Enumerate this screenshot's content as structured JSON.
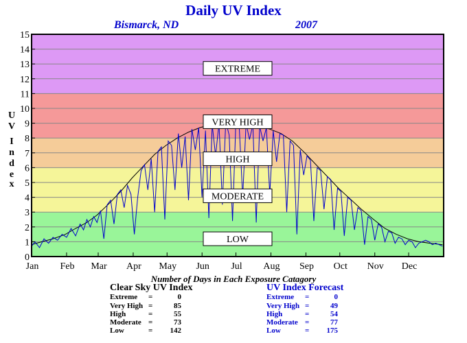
{
  "chart_data": {
    "type": "line",
    "title": "Daily UV Index",
    "subtitle_location": "Bismarck, ND",
    "subtitle_year": "2007",
    "ylabel": "UV Index",
    "ylim": [
      0,
      15
    ],
    "yticks": [
      "0",
      "1",
      "2",
      "3",
      "4",
      "5",
      "6",
      "7",
      "8",
      "9",
      "10",
      "11",
      "12",
      "13",
      "14",
      "15"
    ],
    "xlabels": [
      "Jan",
      "Feb",
      "Mar",
      "Apr",
      "May",
      "Jun",
      "Jul",
      "Aug",
      "Sep",
      "Oct",
      "Nov",
      "Dec"
    ],
    "grid": true,
    "bands": [
      {
        "name": "LOW",
        "from": 0,
        "to": 3,
        "color": "#99f599"
      },
      {
        "name": "MODERATE",
        "from": 3,
        "to": 6,
        "color": "#f5f599"
      },
      {
        "name": "HIGH",
        "from": 6,
        "to": 8,
        "color": "#f5cc99"
      },
      {
        "name": "VERY HIGH",
        "from": 8,
        "to": 11,
        "color": "#f59999"
      },
      {
        "name": "EXTREME",
        "from": 11,
        "to": 15,
        "color": "#dd99f5"
      }
    ],
    "series": [
      {
        "name": "Clear Sky UV Index",
        "color": "#000000",
        "points": [
          [
            1,
            0.8
          ],
          [
            10,
            1.0
          ],
          [
            20,
            1.2
          ],
          [
            31,
            1.5
          ],
          [
            40,
            1.9
          ],
          [
            50,
            2.3
          ],
          [
            59,
            2.8
          ],
          [
            70,
            3.6
          ],
          [
            80,
            4.4
          ],
          [
            90,
            5.3
          ],
          [
            100,
            6.1
          ],
          [
            110,
            6.9
          ],
          [
            120,
            7.5
          ],
          [
            130,
            8.0
          ],
          [
            140,
            8.4
          ],
          [
            150,
            8.7
          ],
          [
            160,
            8.9
          ],
          [
            172,
            9.0
          ],
          [
            182,
            9.0
          ],
          [
            192,
            8.9
          ],
          [
            202,
            8.8
          ],
          [
            212,
            8.6
          ],
          [
            222,
            8.3
          ],
          [
            232,
            7.8
          ],
          [
            243,
            7.0
          ],
          [
            253,
            6.2
          ],
          [
            263,
            5.4
          ],
          [
            273,
            4.6
          ],
          [
            283,
            3.9
          ],
          [
            293,
            3.2
          ],
          [
            304,
            2.5
          ],
          [
            314,
            1.9
          ],
          [
            324,
            1.5
          ],
          [
            334,
            1.2
          ],
          [
            344,
            1.0
          ],
          [
            354,
            0.9
          ],
          [
            365,
            0.8
          ]
        ]
      },
      {
        "name": "UV Index Forecast",
        "color": "#0000cc",
        "points": [
          [
            1,
            0.7
          ],
          [
            4,
            1.0
          ],
          [
            8,
            0.6
          ],
          [
            12,
            1.2
          ],
          [
            16,
            0.9
          ],
          [
            20,
            1.3
          ],
          [
            24,
            1.1
          ],
          [
            28,
            1.5
          ],
          [
            32,
            1.3
          ],
          [
            36,
            1.9
          ],
          [
            40,
            1.4
          ],
          [
            44,
            2.2
          ],
          [
            47,
            1.8
          ],
          [
            50,
            2.5
          ],
          [
            53,
            2.0
          ],
          [
            56,
            2.7
          ],
          [
            59,
            2.3
          ],
          [
            62,
            3.1
          ],
          [
            65,
            1.2
          ],
          [
            68,
            3.5
          ],
          [
            71,
            3.8
          ],
          [
            74,
            2.2
          ],
          [
            77,
            4.2
          ],
          [
            80,
            4.5
          ],
          [
            83,
            3.3
          ],
          [
            86,
            4.8
          ],
          [
            89,
            4.2
          ],
          [
            92,
            1.5
          ],
          [
            95,
            4.0
          ],
          [
            98,
            5.8
          ],
          [
            101,
            6.2
          ],
          [
            104,
            4.5
          ],
          [
            107,
            6.6
          ],
          [
            110,
            3.0
          ],
          [
            113,
            7.1
          ],
          [
            116,
            7.4
          ],
          [
            119,
            2.5
          ],
          [
            122,
            7.8
          ],
          [
            125,
            7.5
          ],
          [
            128,
            4.5
          ],
          [
            131,
            8.3
          ],
          [
            134,
            6.0
          ],
          [
            137,
            8.1
          ],
          [
            140,
            3.8
          ],
          [
            143,
            8.6
          ],
          [
            146,
            7.2
          ],
          [
            149,
            8.7
          ],
          [
            152,
            4.0
          ],
          [
            155,
            8.5
          ],
          [
            158,
            2.6
          ],
          [
            161,
            8.9
          ],
          [
            164,
            6.8
          ],
          [
            167,
            9.0
          ],
          [
            170,
            3.5
          ],
          [
            173,
            9.1
          ],
          [
            176,
            8.2
          ],
          [
            179,
            2.4
          ],
          [
            182,
            9.2
          ],
          [
            185,
            8.6
          ],
          [
            188,
            4.0
          ],
          [
            191,
            9.0
          ],
          [
            194,
            7.9
          ],
          [
            197,
            8.9
          ],
          [
            200,
            2.3
          ],
          [
            203,
            8.8
          ],
          [
            206,
            7.8
          ],
          [
            209,
            8.7
          ],
          [
            212,
            4.2
          ],
          [
            215,
            8.5
          ],
          [
            218,
            6.4
          ],
          [
            221,
            8.3
          ],
          [
            224,
            8.2
          ],
          [
            227,
            3.0
          ],
          [
            230,
            7.8
          ],
          [
            233,
            7.5
          ],
          [
            236,
            1.5
          ],
          [
            239,
            7.2
          ],
          [
            242,
            5.5
          ],
          [
            245,
            6.8
          ],
          [
            248,
            6.5
          ],
          [
            251,
            2.4
          ],
          [
            254,
            6.0
          ],
          [
            257,
            5.8
          ],
          [
            260,
            3.2
          ],
          [
            263,
            5.4
          ],
          [
            266,
            5.2
          ],
          [
            269,
            1.8
          ],
          [
            272,
            4.6
          ],
          [
            275,
            4.4
          ],
          [
            278,
            1.4
          ],
          [
            281,
            4.0
          ],
          [
            284,
            3.8
          ],
          [
            287,
            1.8
          ],
          [
            290,
            3.3
          ],
          [
            293,
            3.1
          ],
          [
            296,
            0.8
          ],
          [
            299,
            2.7
          ],
          [
            302,
            2.5
          ],
          [
            305,
            1.1
          ],
          [
            308,
            2.2
          ],
          [
            311,
            2.0
          ],
          [
            314,
            1.0
          ],
          [
            317,
            1.7
          ],
          [
            320,
            1.6
          ],
          [
            323,
            0.9
          ],
          [
            326,
            1.3
          ],
          [
            329,
            1.2
          ],
          [
            332,
            0.8
          ],
          [
            335,
            1.1
          ],
          [
            338,
            1.0
          ],
          [
            341,
            0.6
          ],
          [
            344,
            0.9
          ],
          [
            347,
            1.0
          ],
          [
            350,
            1.1
          ],
          [
            353,
            1.0
          ],
          [
            356,
            0.8
          ],
          [
            359,
            0.9
          ],
          [
            362,
            0.8
          ],
          [
            365,
            0.7
          ]
        ]
      }
    ]
  },
  "stats_title": "Number of Days in Each Exposure Catagory",
  "clear_sky": {
    "header": "Clear Sky UV Index",
    "rows": [
      {
        "label": "Extreme",
        "value": "0"
      },
      {
        "label": "Very High",
        "value": "85"
      },
      {
        "label": "High",
        "value": "55"
      },
      {
        "label": "Moderate",
        "value": "73"
      },
      {
        "label": "Low",
        "value": "142"
      }
    ]
  },
  "forecast": {
    "header": "UV Index Forecast",
    "rows": [
      {
        "label": "Extreme",
        "value": "0"
      },
      {
        "label": "Very High",
        "value": "49"
      },
      {
        "label": "High",
        "value": "54"
      },
      {
        "label": "Moderate",
        "value": "77"
      },
      {
        "label": "Low",
        "value": "175"
      }
    ]
  }
}
